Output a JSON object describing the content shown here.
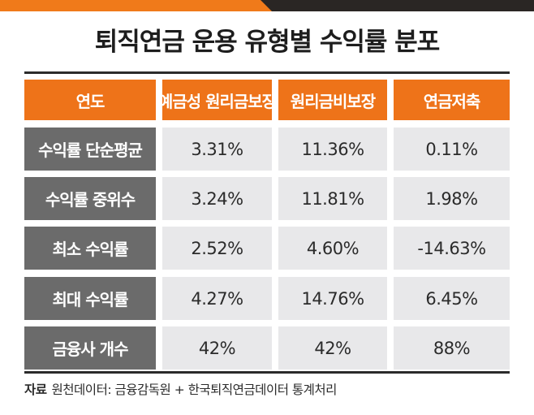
{
  "title": "퇴직연금 운용 유형별 수익률 분포",
  "colors": {
    "accent": "#ee7319",
    "label_bg": "#6b6b6b",
    "cell_bg": "#e8e8ea",
    "dark": "#2a2624"
  },
  "chart_data": {
    "type": "table",
    "title": "퇴직연금 운용 유형별 수익률 분포",
    "header": [
      "연도",
      "예금성 원리금보장",
      "원리금비보장",
      "연금저축"
    ],
    "rows": [
      {
        "label": "수익률 단순평균",
        "values": [
          "3.31%",
          "11.36%",
          "0.11%"
        ]
      },
      {
        "label": "수익률 중위수",
        "values": [
          "3.24%",
          "11.81%",
          "1.98%"
        ]
      },
      {
        "label": "최소 수익률",
        "values": [
          "2.52%",
          "4.60%",
          "-14.63%"
        ]
      },
      {
        "label": "최대 수익률",
        "values": [
          "4.27%",
          "14.76%",
          "6.45%"
        ]
      },
      {
        "label": "금융사 개수",
        "values": [
          "42%",
          "42%",
          "88%"
        ]
      }
    ]
  },
  "source": {
    "label": "자료",
    "text": "원천데이터: 금융감독원 + 한국퇴직연금데이터 통계처리"
  }
}
